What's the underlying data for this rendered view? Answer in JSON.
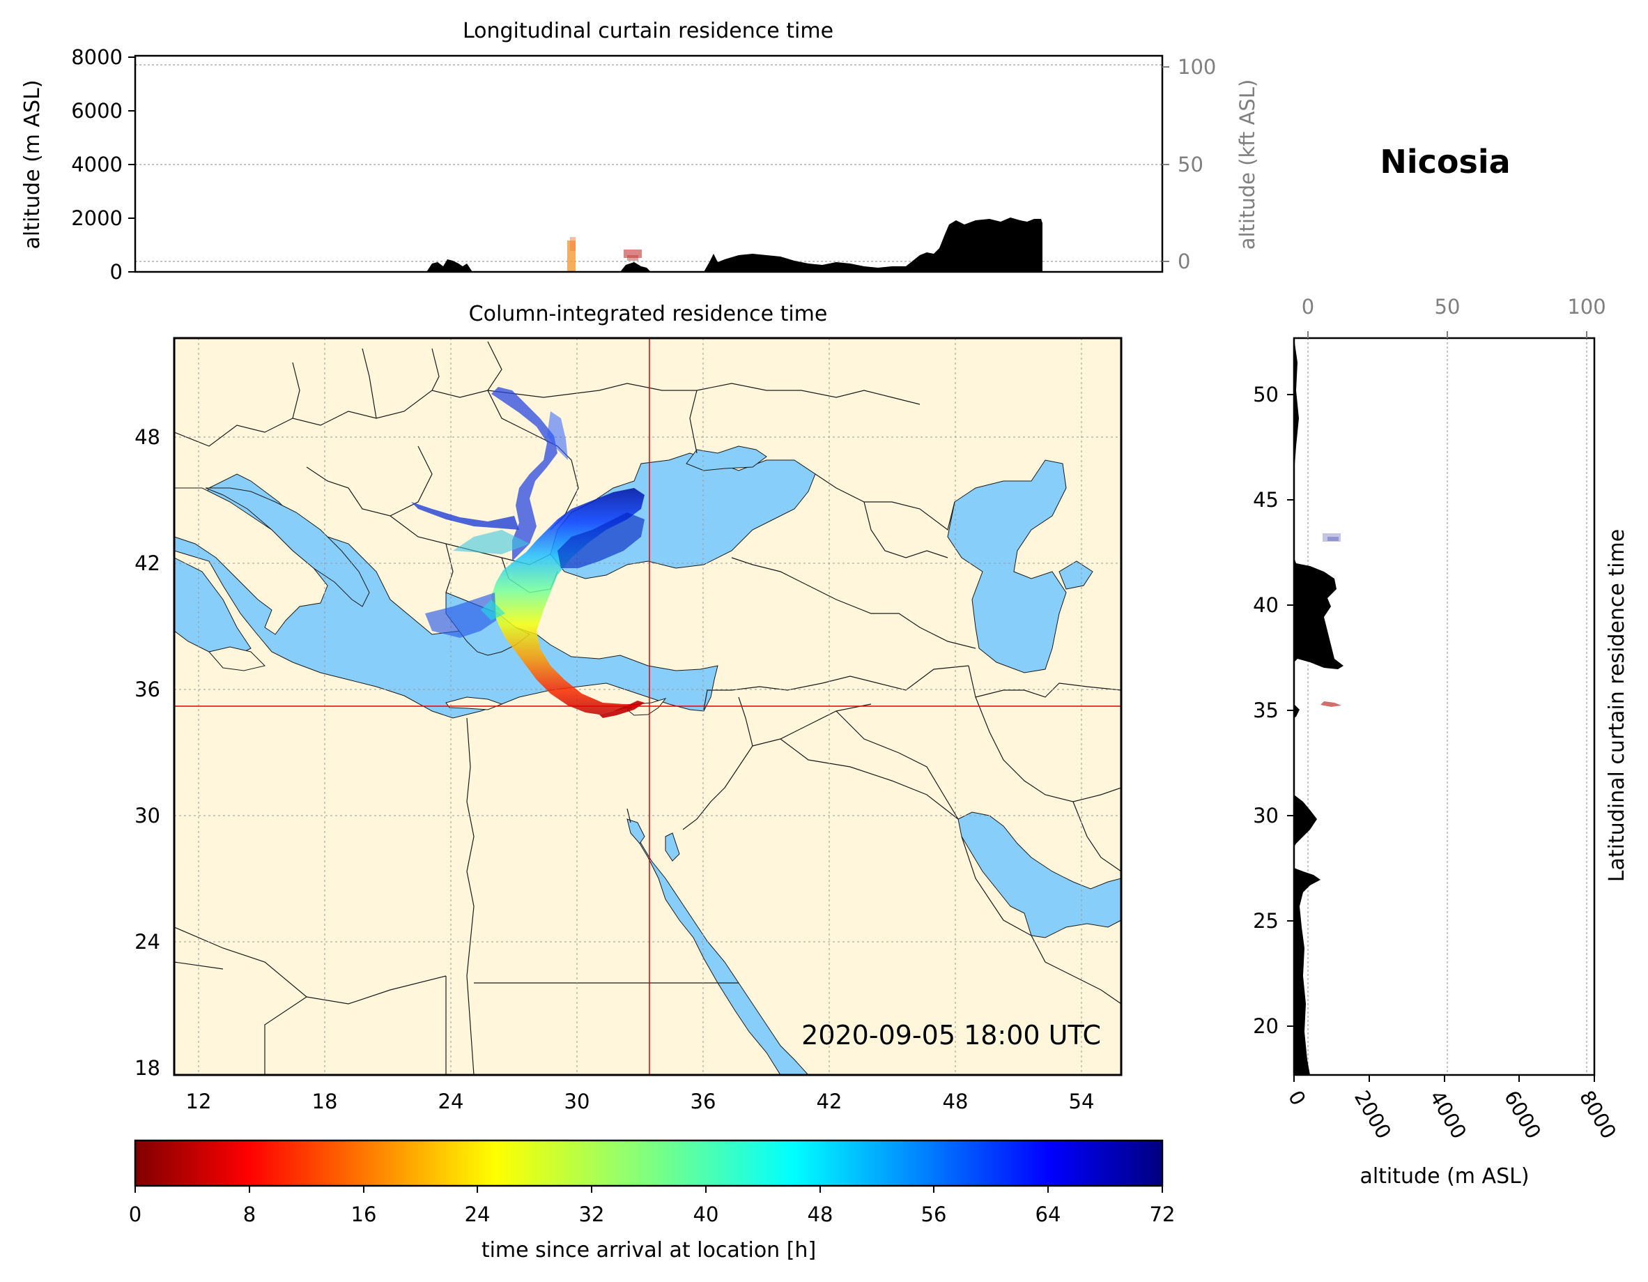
{
  "location_title": "Nicosia",
  "timestamp": "2020-09-05 18:00 UTC",
  "top_panel": {
    "title": "Longitudinal curtain residence time",
    "ylabel": "altitude (m ASL)",
    "ylabel_right": "altitude (kft ASL)",
    "yticks": [
      "0",
      "2000",
      "4000",
      "6000",
      "8000"
    ],
    "yticks_right": [
      "0",
      "50",
      "100"
    ]
  },
  "map_panel": {
    "title": "Column-integrated residence time",
    "lon_ticks": [
      "12",
      "18",
      "24",
      "30",
      "36",
      "42",
      "48",
      "54"
    ],
    "lat_ticks": [
      "18",
      "24",
      "30",
      "36",
      "42",
      "48"
    ],
    "location_lon": 33.4,
    "location_lat": 35.2,
    "colors": {
      "land": "#fff6dc",
      "sea": "#87cefa",
      "border": "#1a1a1a",
      "crosshair": "#e00000"
    }
  },
  "side_panel": {
    "title": "Latitudinal curtain residence time",
    "xlabel": "altitude (m ASL)",
    "xticks": [
      "0",
      "2000",
      "4000",
      "6000",
      "8000"
    ],
    "xticks_top": [
      "0",
      "50",
      "100"
    ],
    "yticks": [
      "20",
      "25",
      "30",
      "35",
      "40",
      "45",
      "50"
    ]
  },
  "colorbar": {
    "label": "time since arrival at location [h]",
    "ticks": [
      "0",
      "8",
      "16",
      "24",
      "32",
      "40",
      "48",
      "56",
      "64",
      "72"
    ],
    "colormap": "jet_r"
  }
}
